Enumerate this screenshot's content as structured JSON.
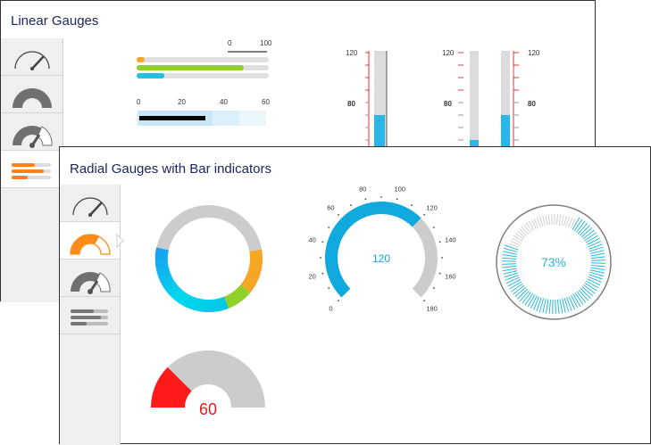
{
  "linear_window": {
    "title": "Linear Gauges",
    "sidebar": {
      "items": [
        {
          "icon": "speedometer-icon",
          "active": false
        },
        {
          "icon": "half-gauge-icon",
          "active": false
        },
        {
          "icon": "gauge-needle-icon",
          "active": false
        },
        {
          "icon": "linear-bars-icon",
          "active": true
        }
      ]
    },
    "gauges": {
      "horizontal_bars": {
        "scale_labels": [
          "0",
          "100"
        ],
        "bars": [
          {
            "value": 6,
            "color": "#f5a623"
          },
          {
            "value": 81,
            "color": "#8fd12a"
          },
          {
            "value": 21,
            "color": "#1fc3e0"
          }
        ]
      },
      "horizontal_range": {
        "tick_labels": [
          "0",
          "20",
          "40",
          "60"
        ],
        "pointer_value": 25
      },
      "thermometer_1": {
        "tick_labels": [
          "120",
          "80"
        ],
        "red_ticks_above": 80
      },
      "thermometer_2": {
        "tick_labels_left": [
          "120",
          "80"
        ],
        "tick_labels_right": [
          "120",
          "80"
        ]
      }
    }
  },
  "radial_window": {
    "title": "Radial Gauges with Bar indicators",
    "sidebar": {
      "items": [
        {
          "icon": "speedometer-icon",
          "active": false
        },
        {
          "icon": "half-gauge-orange-icon",
          "active": true
        },
        {
          "icon": "gauge-needle-icon",
          "active": false
        },
        {
          "icon": "linear-bars-icon",
          "active": false
        }
      ]
    },
    "gauges": {
      "ring": {
        "segments": [
          {
            "color": "#00c8e6"
          },
          {
            "color": "#8fd12a"
          },
          {
            "color": "#f5a623"
          }
        ]
      },
      "arc_gauge": {
        "value_label": "120",
        "value": 120,
        "min": 0,
        "max": 180,
        "tick_labels": [
          "0",
          "20",
          "40",
          "60",
          "80",
          "100",
          "120",
          "140",
          "160",
          "180"
        ],
        "fill_color": "#10a9dd"
      },
      "percent_gauge": {
        "value_label": "73%",
        "percent": 73,
        "color": "#29b6d8"
      },
      "half_gauge": {
        "value_label": "60",
        "fill_fraction": 0.25,
        "fill_color": "#ff1a1a",
        "label_color": "#e31b1b"
      }
    }
  }
}
